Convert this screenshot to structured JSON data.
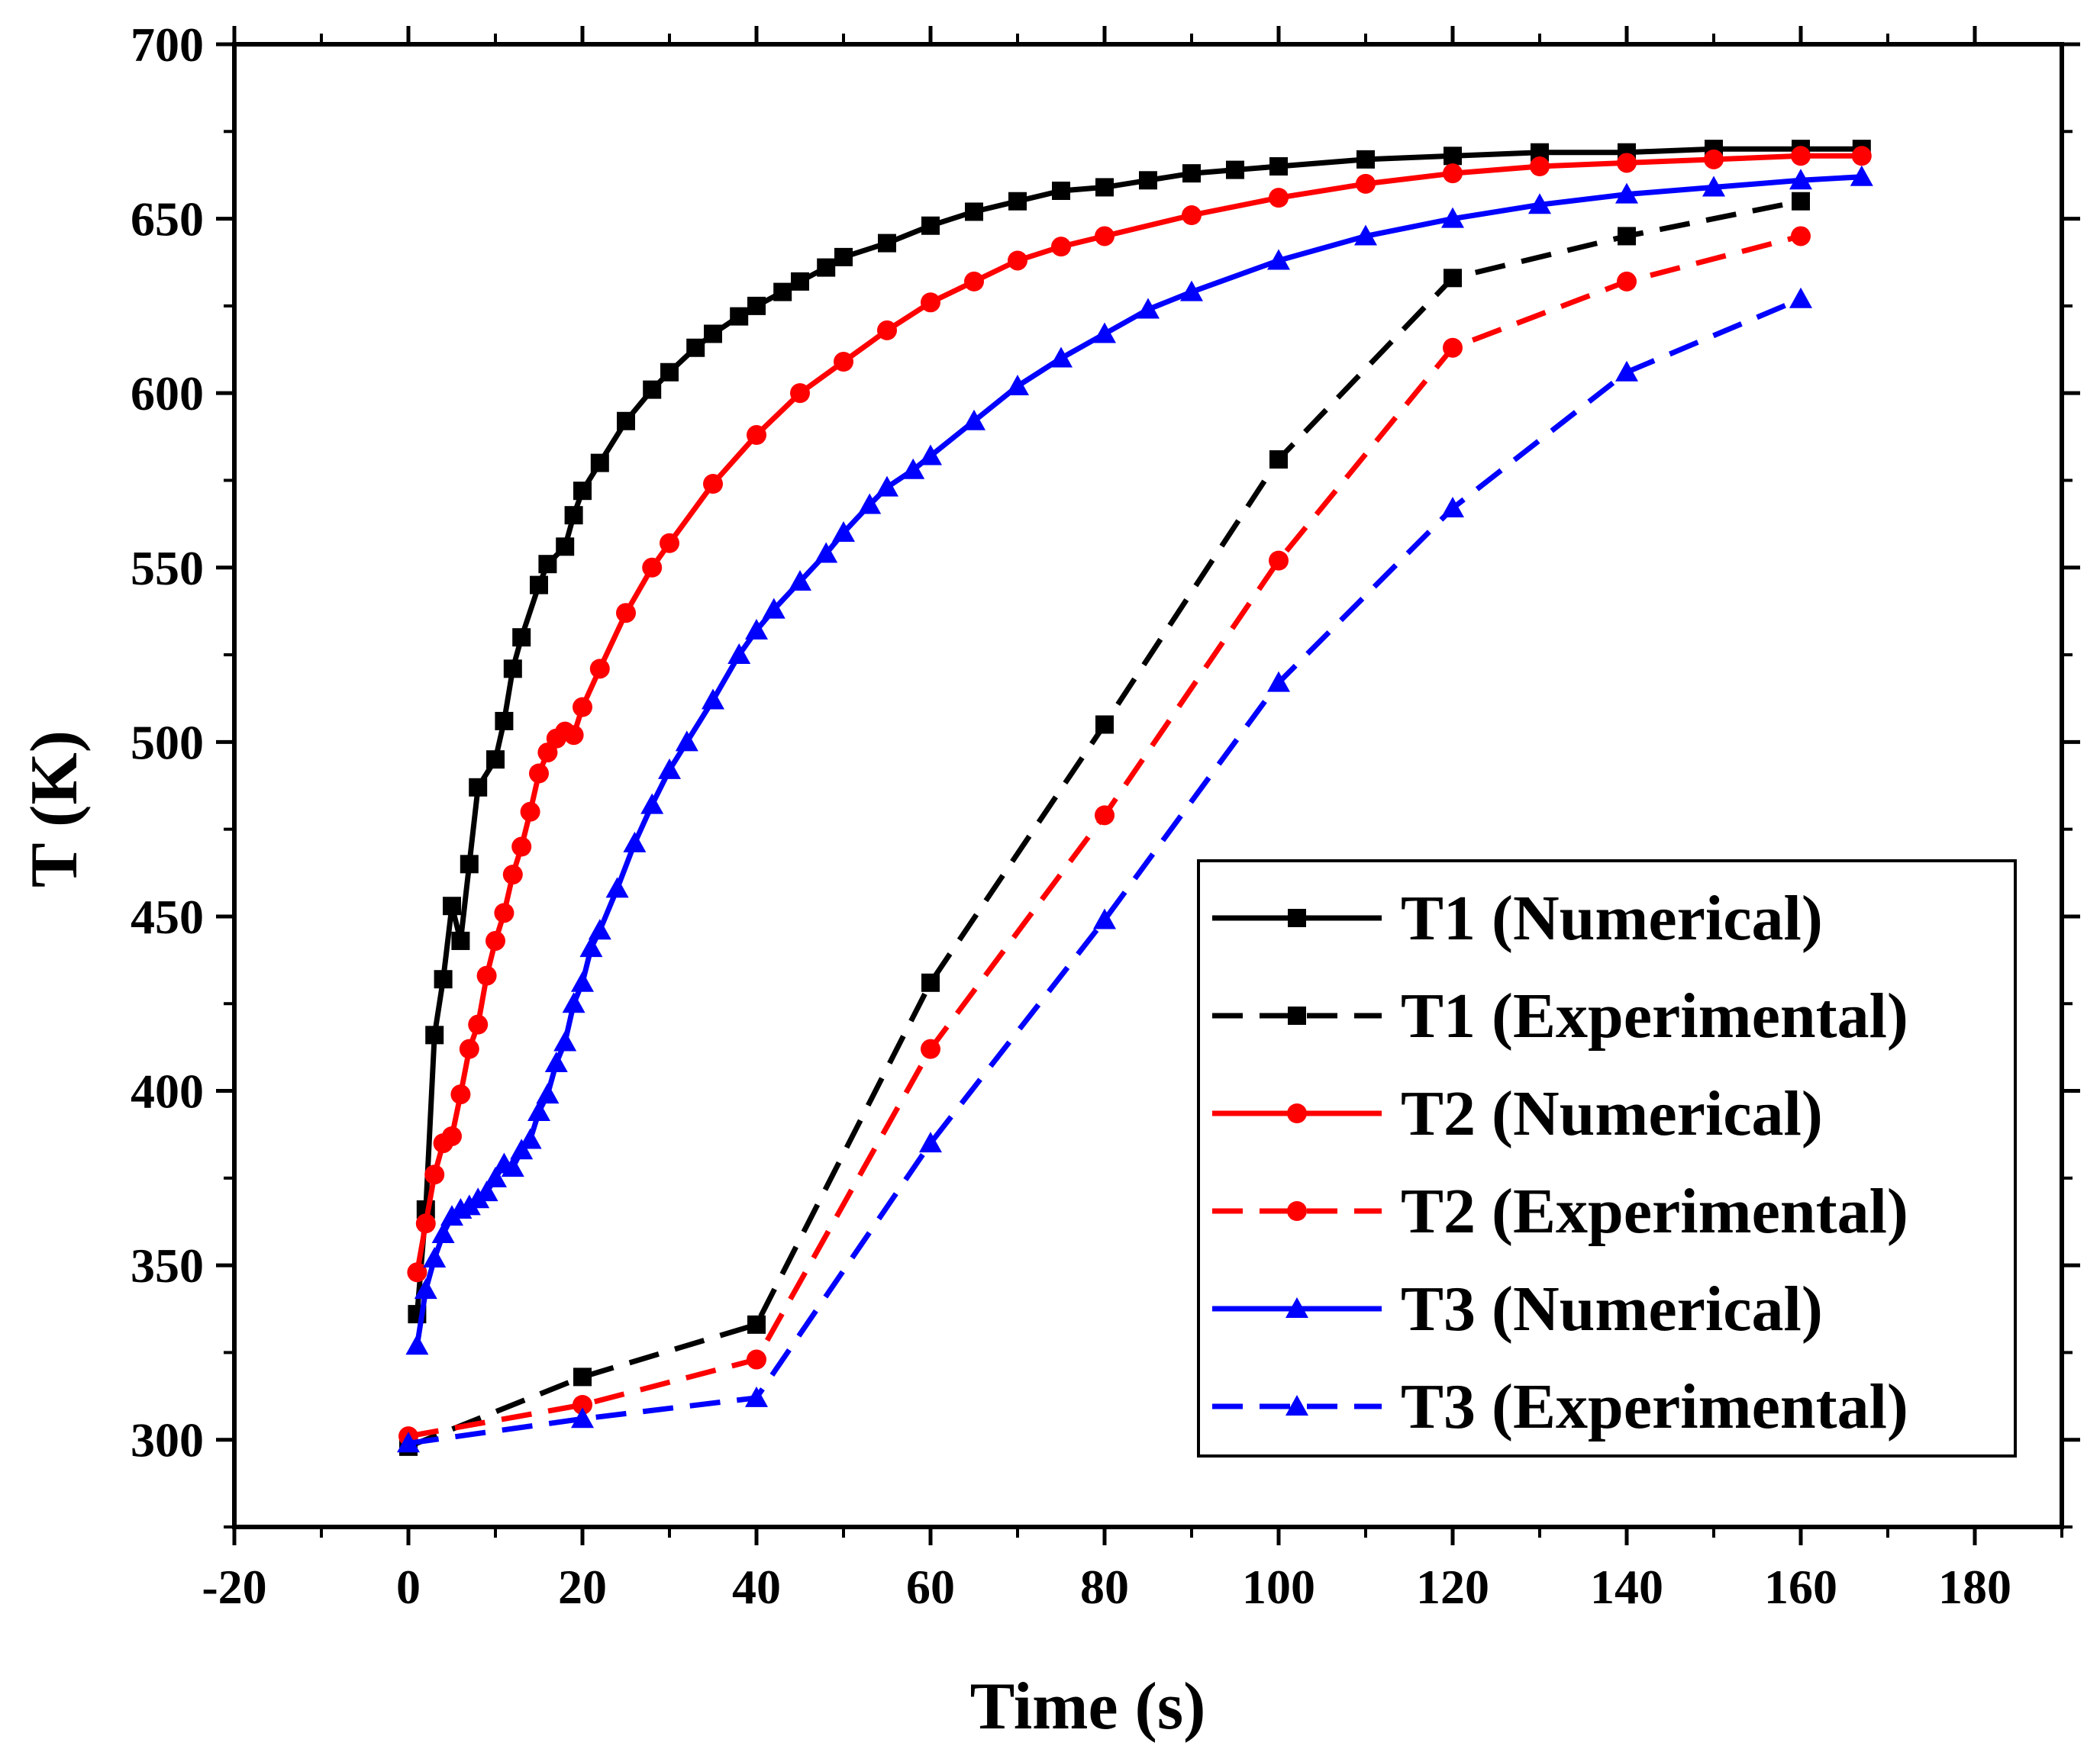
{
  "chart_data": {
    "type": "line",
    "title": "",
    "xlabel": "Time (s)",
    "ylabel": "T (K)",
    "xlim": [
      -20,
      190
    ],
    "ylim": [
      275,
      700
    ],
    "xticks": [
      -20,
      0,
      20,
      40,
      60,
      80,
      100,
      120,
      140,
      160,
      180
    ],
    "xtick_labels": [
      "-20",
      "0",
      "20",
      "40",
      "60",
      "80",
      "100",
      "120",
      "140",
      "160",
      "180"
    ],
    "yticks": [
      300,
      350,
      400,
      450,
      500,
      550,
      600,
      650,
      700
    ],
    "ytick_labels": [
      "300",
      "350",
      "400",
      "450",
      "500",
      "550",
      "600",
      "650",
      "700"
    ],
    "grid": false,
    "legend_position": "bottom-right",
    "series": [
      {
        "name": "T1 (Numerical)",
        "color": "#000000",
        "style": "solid",
        "marker": "square",
        "x": [
          1,
          2,
          3,
          4,
          5,
          6,
          7,
          8,
          10,
          11,
          12,
          13,
          15,
          16,
          18,
          19,
          20,
          22,
          25,
          28,
          30,
          33,
          35,
          38,
          40,
          43,
          45,
          48,
          50,
          55,
          60,
          65,
          70,
          75,
          80,
          85,
          90,
          95,
          100,
          110,
          120,
          130,
          140,
          150,
          160,
          167
        ],
        "y": [
          336,
          366,
          416,
          432,
          453,
          443,
          465,
          487,
          495,
          506,
          521,
          530,
          545,
          551,
          556,
          565,
          572,
          580,
          592,
          601,
          606,
          613,
          617,
          622,
          625,
          629,
          632,
          636,
          639,
          643,
          648,
          652,
          655,
          658,
          659,
          661,
          663,
          664,
          665,
          667,
          668,
          669,
          669,
          670,
          670,
          670
        ]
      },
      {
        "name": "T1 (Experimental)",
        "color": "#000000",
        "style": "dashed",
        "marker": "square",
        "x": [
          0,
          20,
          40,
          60,
          80,
          100,
          120,
          140,
          160
        ],
        "y": [
          298,
          318,
          333,
          431,
          505,
          581,
          633,
          645,
          655
        ]
      },
      {
        "name": "T2 (Numerical)",
        "color": "#ff0000",
        "style": "solid",
        "marker": "circle",
        "x": [
          1,
          2,
          3,
          4,
          5,
          6,
          7,
          8,
          9,
          10,
          11,
          12,
          13,
          14,
          15,
          16,
          17,
          18,
          19,
          20,
          22,
          25,
          28,
          30,
          35,
          40,
          45,
          50,
          55,
          60,
          65,
          70,
          75,
          80,
          90,
          100,
          110,
          120,
          130,
          140,
          150,
          160,
          167
        ],
        "y": [
          348,
          362,
          376,
          385,
          387,
          399,
          412,
          419,
          433,
          443,
          451,
          462,
          470,
          480,
          491,
          497,
          501,
          503,
          502,
          510,
          521,
          537,
          550,
          557,
          574,
          588,
          600,
          609,
          618,
          626,
          632,
          638,
          642,
          645,
          651,
          656,
          660,
          663,
          665,
          666,
          667,
          668,
          668
        ]
      },
      {
        "name": "T2 (Experimental)",
        "color": "#ff0000",
        "style": "dashed",
        "marker": "circle",
        "x": [
          0,
          20,
          40,
          60,
          80,
          100,
          120,
          140,
          160
        ],
        "y": [
          301,
          310,
          323,
          412,
          479,
          552,
          613,
          632,
          645
        ]
      },
      {
        "name": "T3 (Numerical)",
        "color": "#0000ff",
        "style": "solid",
        "marker": "triangle",
        "x": [
          1,
          2,
          3,
          4,
          5,
          6,
          7,
          8,
          9,
          10,
          11,
          12,
          13,
          14,
          15,
          16,
          17,
          18,
          19,
          20,
          21,
          22,
          24,
          26,
          28,
          30,
          32,
          35,
          38,
          40,
          42,
          45,
          48,
          50,
          53,
          55,
          58,
          60,
          65,
          70,
          75,
          80,
          85,
          90,
          100,
          110,
          120,
          130,
          140,
          150,
          160,
          167
        ],
        "y": [
          327,
          343,
          352,
          359,
          364,
          366,
          367,
          369,
          371,
          375,
          379,
          378,
          383,
          386,
          394,
          399,
          408,
          414,
          425,
          431,
          441,
          446,
          458,
          471,
          482,
          492,
          500,
          512,
          525,
          532,
          538,
          546,
          554,
          560,
          568,
          573,
          578,
          582,
          592,
          602,
          610,
          617,
          624,
          629,
          638,
          645,
          650,
          654,
          657,
          659,
          661,
          662
        ]
      },
      {
        "name": "T3 (Experimental)",
        "color": "#0000ff",
        "style": "dashed",
        "marker": "triangle",
        "x": [
          0,
          20,
          40,
          60,
          80,
          100,
          120,
          140,
          160
        ],
        "y": [
          299,
          306,
          312,
          385,
          449,
          517,
          567,
          606,
          627
        ]
      }
    ]
  }
}
